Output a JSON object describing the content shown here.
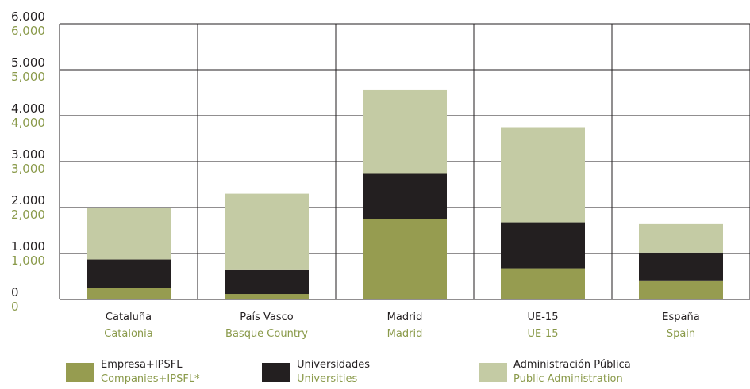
{
  "chart_data": {
    "type": "bar",
    "stacked": true,
    "title": "",
    "xlabel": "",
    "ylabel": "",
    "ylim": [
      0,
      6000
    ],
    "yticks": [
      0,
      1000,
      2000,
      3000,
      4000,
      5000,
      6000
    ],
    "ytick_labels_es": [
      "0",
      "1.000",
      "2.000",
      "3.000",
      "4.000",
      "5.000",
      "6.000"
    ],
    "ytick_labels_en": [
      "0",
      "1,000",
      "2,000",
      "3,000",
      "4,000",
      "5,000",
      "6,000"
    ],
    "categories_es": [
      "Cataluña",
      "País Vasco",
      "Madrid",
      "UE-15",
      "España"
    ],
    "categories_en": [
      "Catalonia",
      "Basque Country",
      "Madrid",
      "UE-15",
      "Spain"
    ],
    "grid": true,
    "legend_position": "bottom",
    "series": [
      {
        "name": "Empresa+IPSFL",
        "name_en": "Companies+IPSFL*",
        "color": "#969c50",
        "values": [
          250,
          120,
          1750,
          680,
          400
        ]
      },
      {
        "name": "Universidades",
        "name_en": "Universities",
        "color": "#231f20",
        "values": [
          620,
          520,
          1000,
          1000,
          620
        ]
      },
      {
        "name": "Administración Pública",
        "name_en": "Public Administration",
        "color": "#c4cba4",
        "values": [
          1130,
          1660,
          1820,
          2070,
          620
        ]
      }
    ]
  }
}
